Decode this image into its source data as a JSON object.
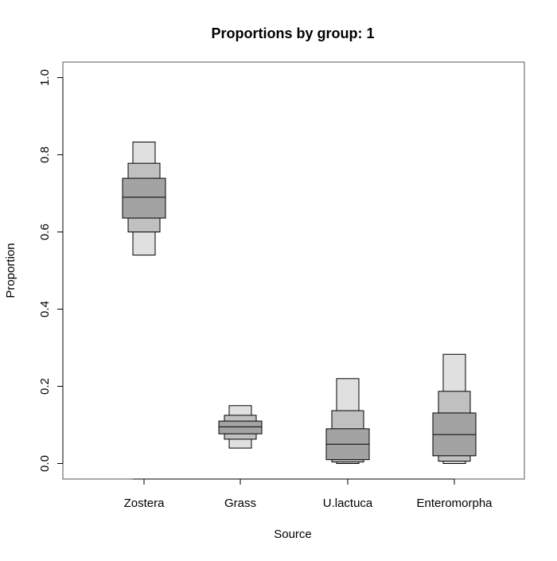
{
  "chart_data": {
    "type": "box",
    "title": "Proportions by group: 1",
    "xlabel": "Source",
    "ylabel": "Proportion",
    "ylim": [
      0.0,
      1.0
    ],
    "yticks": [
      "0.0",
      "0.2",
      "0.4",
      "0.6",
      "0.8",
      "1.0"
    ],
    "categories": [
      "Zostera",
      "Grass",
      "U.lactuca",
      "Enteromorpha"
    ],
    "credible_intervals": [
      {
        "source": "Zostera",
        "outer": [
          0.54,
          0.833
        ],
        "middle": [
          0.6,
          0.778
        ],
        "inner": [
          0.636,
          0.739
        ],
        "median": 0.69
      },
      {
        "source": "Grass",
        "outer": [
          0.04,
          0.15
        ],
        "middle": [
          0.063,
          0.125
        ],
        "inner": [
          0.077,
          0.11
        ],
        "median": 0.095
      },
      {
        "source": "U.lactuca",
        "outer": [
          0.0,
          0.22
        ],
        "middle": [
          0.004,
          0.137
        ],
        "inner": [
          0.01,
          0.09
        ],
        "median": 0.05
      },
      {
        "source": "Enteromorpha",
        "outer": [
          0.0,
          0.283
        ],
        "middle": [
          0.006,
          0.187
        ],
        "inner": [
          0.02,
          0.131
        ],
        "median": 0.075
      }
    ],
    "colors": {
      "outer": "#e0e0e0",
      "middle": "#c0c0c0",
      "inner": "#a3a3a3",
      "stroke": "#000000"
    },
    "grid": false
  }
}
